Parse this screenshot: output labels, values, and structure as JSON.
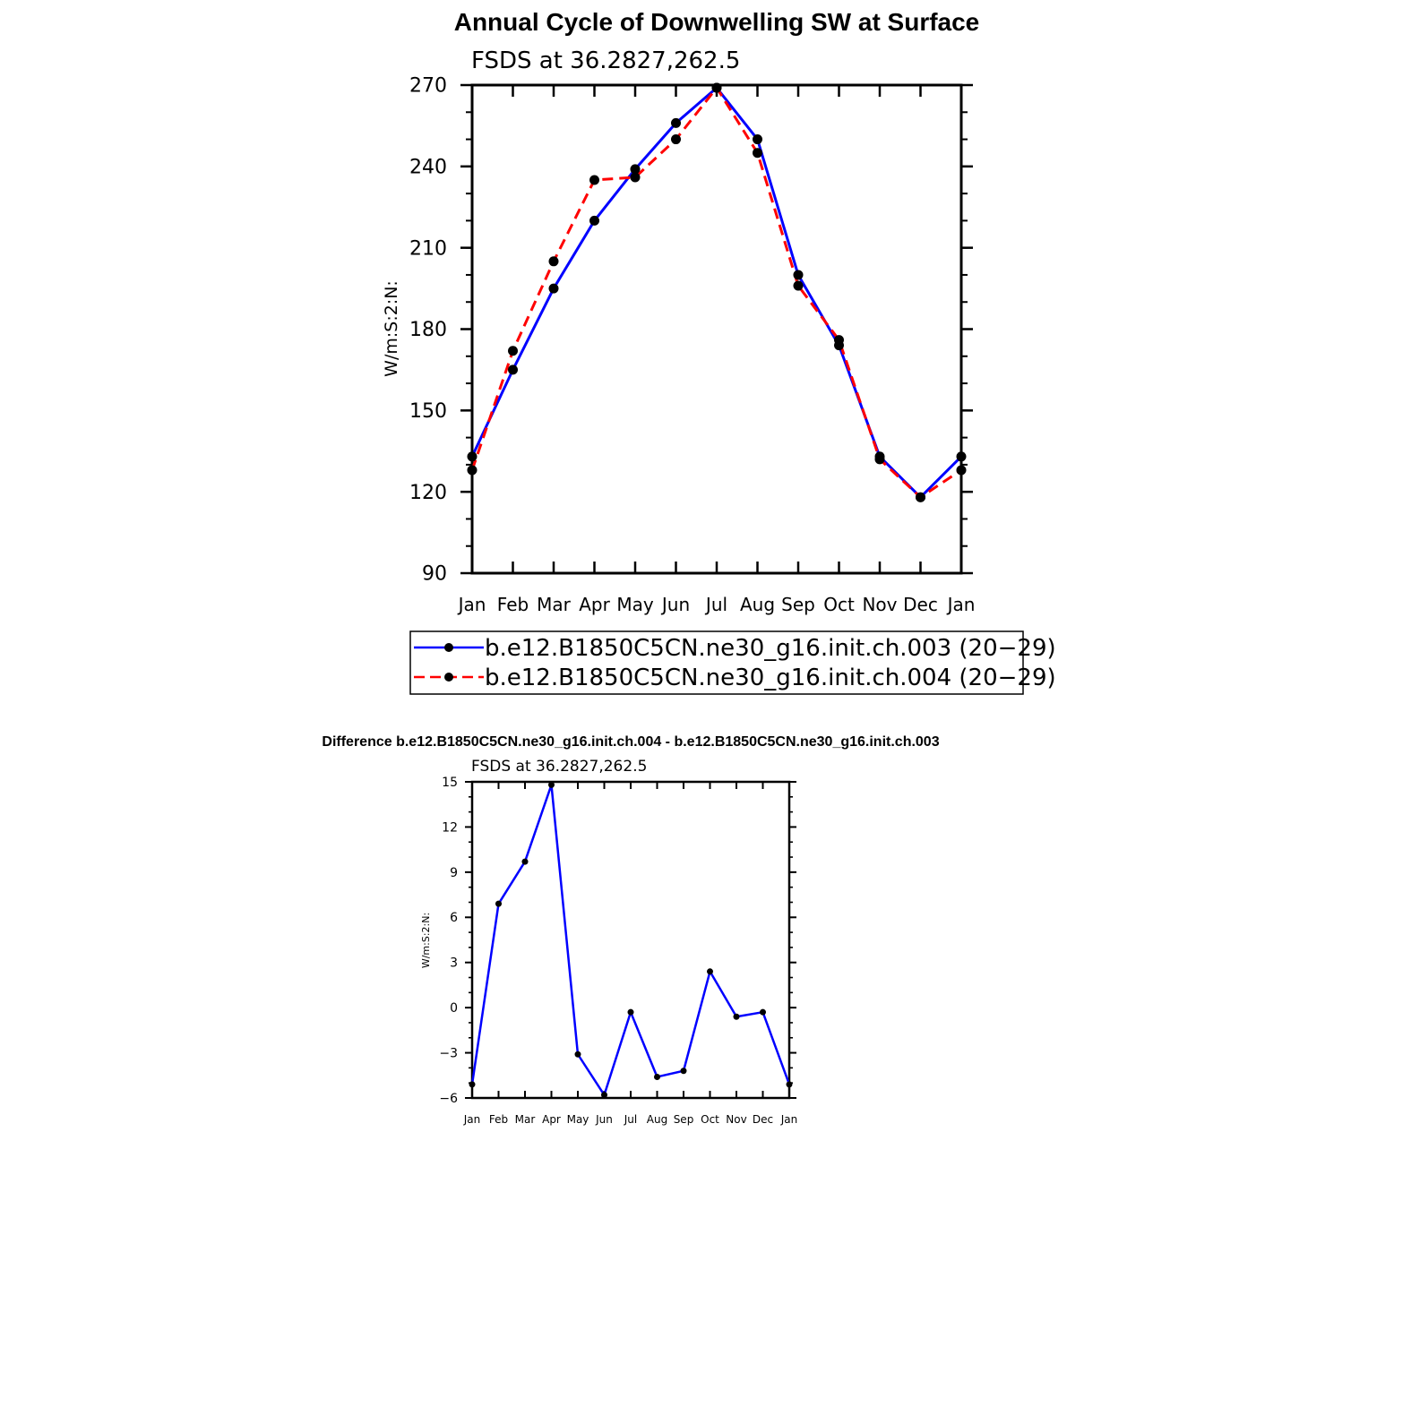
{
  "page": {
    "background": "#ffffff"
  },
  "chart_data": [
    {
      "type": "line",
      "title": "Annual Cycle of Downwelling SW at Surface",
      "subtitle": "FSDS at 36.2827,262.5",
      "xlabel": "",
      "ylabel": "W/m:S:2:N:",
      "categories": [
        "Jan",
        "Feb",
        "Mar",
        "Apr",
        "May",
        "Jun",
        "Jul",
        "Aug",
        "Sep",
        "Oct",
        "Nov",
        "Dec",
        "Jan"
      ],
      "ylim": [
        90,
        270
      ],
      "yticks": [
        90,
        120,
        150,
        180,
        210,
        240,
        270
      ],
      "ytick_labels": [
        "90",
        "120",
        "150",
        "180",
        "210",
        "240",
        "270"
      ],
      "grid": false,
      "legend_position": "bottom",
      "series": [
        {
          "name": "b.e12.B1850C5CN.ne30_g16.init.ch.003 (20−29)",
          "color": "#0000ff",
          "dash": "solid",
          "values": [
            133,
            165,
            195,
            220,
            239,
            256,
            269,
            250,
            200,
            174,
            133,
            118,
            133
          ]
        },
        {
          "name": "b.e12.B1850C5CN.ne30_g16.init.ch.004 (20−29)",
          "color": "#ff0000",
          "dash": "dashed",
          "values": [
            128,
            172,
            205,
            235,
            236,
            250,
            269,
            245,
            196,
            176,
            132,
            118,
            128
          ]
        }
      ]
    },
    {
      "type": "line",
      "title": "Difference b.e12.B1850C5CN.ne30_g16.init.ch.004 - b.e12.B1850C5CN.ne30_g16.init.ch.003",
      "subtitle": "FSDS at 36.2827,262.5",
      "xlabel": "",
      "ylabel": "W/m:S:2:N:",
      "categories": [
        "Jan",
        "Feb",
        "Mar",
        "Apr",
        "May",
        "Jun",
        "Jul",
        "Aug",
        "Sep",
        "Oct",
        "Nov",
        "Dec",
        "Jan"
      ],
      "ylim": [
        -6,
        15
      ],
      "yticks": [
        -6,
        -3,
        0,
        3,
        6,
        9,
        12,
        15
      ],
      "ytick_labels": [
        "−6",
        "−3",
        "0",
        "3",
        "6",
        "9",
        "12",
        "15"
      ],
      "grid": false,
      "series": [
        {
          "color": "#0000ff",
          "dash": "solid",
          "values": [
            -5.1,
            6.9,
            9.7,
            14.8,
            -3.1,
            -5.8,
            -0.3,
            -4.6,
            -4.2,
            2.4,
            -0.6,
            -0.3,
            -5.1
          ]
        }
      ]
    }
  ]
}
